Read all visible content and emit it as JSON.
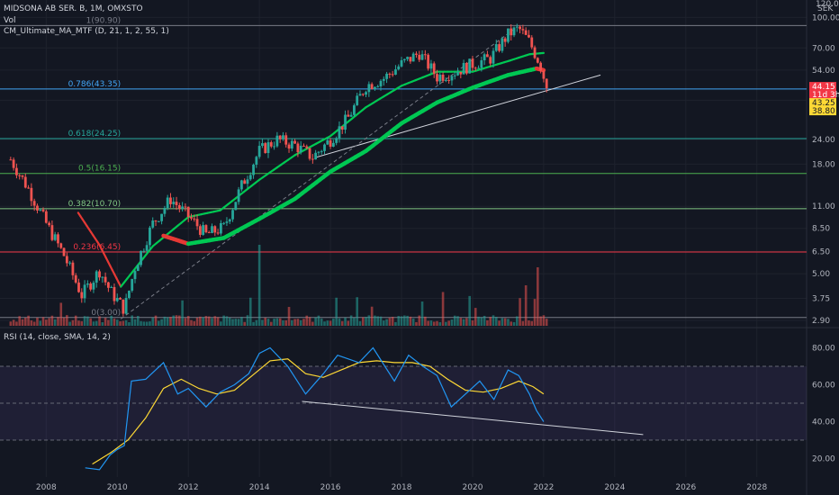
{
  "header": {
    "symbol_line": "MIDSONA AB SER. B, 1M, OMXSTO",
    "vol_label": "Vol",
    "indicator_line": "CM_Ultimate_MA_MTF (D, 21, 1, 2, 55, 1)",
    "rsi_label": "RSI (14, close, SMA, 14, 2)"
  },
  "price_axis": {
    "unit": "SEK",
    "top_value": "120.00",
    "ticks": [
      "100.00",
      "70.00",
      "54.00",
      "38.00",
      "24.00",
      "18.00",
      "11.00",
      "8.50",
      "6.50",
      "5.00",
      "3.75",
      "2.90"
    ]
  },
  "price_tags": [
    {
      "text": "44.15",
      "bg": "#f23645",
      "fg": "#ffffff"
    },
    {
      "text": "11d 3h",
      "bg": "#f23645",
      "fg": "#ffffff"
    },
    {
      "text": "43.25",
      "bg": "#fdd835",
      "fg": "#131722"
    },
    {
      "text": "38.80",
      "bg": "#fdd835",
      "fg": "#131722"
    }
  ],
  "rsi_axis": {
    "ticks": [
      "80.00",
      "60.00",
      "40.00",
      "20.00"
    ]
  },
  "time_axis": {
    "ticks": [
      "2008",
      "2010",
      "2012",
      "2014",
      "2016",
      "2018",
      "2020",
      "2022",
      "2024",
      "2026",
      "2028"
    ]
  },
  "fib_levels": [
    {
      "label": "1(90.90)",
      "color": "#787b86"
    },
    {
      "label": "0.786(43.35)",
      "color": "#42a5f5"
    },
    {
      "label": "0.618(24.25)",
      "color": "#26a69a"
    },
    {
      "label": "0.5(16.15)",
      "color": "#4caf50"
    },
    {
      "label": "0.382(10.70)",
      "color": "#81c784"
    },
    {
      "label": "0.236(6.45)",
      "color": "#f23645"
    },
    {
      "label": "0(3.00)",
      "color": "#787b86"
    }
  ],
  "colors": {
    "background": "#131722",
    "bull": "#26a69a",
    "bear": "#ef5350",
    "ma_green": "#00c853",
    "ma_red": "#e53935",
    "rsi_line": "#2196f3",
    "rsi_sma": "#fdd835",
    "rsi_band": "#7e57c2"
  },
  "chart_data": [
    {
      "type": "candlestick",
      "title": "MIDSONA AB SER. B, 1M, OMXSTO",
      "scale": "log",
      "ylim": [
        2.9,
        120
      ],
      "x_range": [
        2006.7,
        2029.4
      ],
      "anchors": [
        [
          2007.0,
          19.0
        ],
        [
          2007.5,
          13.5
        ],
        [
          2008.0,
          9.0
        ],
        [
          2008.5,
          6.2
        ],
        [
          2009.0,
          3.9
        ],
        [
          2009.5,
          5.2
        ],
        [
          2009.8,
          4.1
        ],
        [
          2010.2,
          3.3
        ],
        [
          2010.5,
          5.4
        ],
        [
          2011.0,
          9.0
        ],
        [
          2011.5,
          12.0
        ],
        [
          2012.0,
          9.8
        ],
        [
          2012.5,
          7.9
        ],
        [
          2013.0,
          8.6
        ],
        [
          2013.5,
          14.0
        ],
        [
          2014.0,
          21.0
        ],
        [
          2014.5,
          24.0
        ],
        [
          2015.0,
          22.5
        ],
        [
          2015.5,
          19.5
        ],
        [
          2016.0,
          24.0
        ],
        [
          2016.5,
          31.0
        ],
        [
          2017.0,
          45.0
        ],
        [
          2017.5,
          49.0
        ],
        [
          2018.0,
          58.0
        ],
        [
          2018.5,
          66.0
        ],
        [
          2019.0,
          50.0
        ],
        [
          2019.5,
          53.0
        ],
        [
          2020.0,
          58.0
        ],
        [
          2020.5,
          62.0
        ],
        [
          2021.0,
          82.0
        ],
        [
          2021.3,
          88.0
        ],
        [
          2021.6,
          75.0
        ],
        [
          2021.9,
          58.0
        ],
        [
          2022.1,
          43.25
        ]
      ],
      "ma_anchors": [
        [
          2008.9,
          10.2
        ],
        [
          2009.5,
          7.0
        ],
        [
          2010.1,
          4.3
        ],
        [
          2011.0,
          6.9
        ],
        [
          2012.0,
          9.7
        ],
        [
          2012.9,
          10.5
        ],
        [
          2014.0,
          15.0
        ],
        [
          2015.0,
          20.0
        ],
        [
          2016.0,
          25.0
        ],
        [
          2017.0,
          35.0
        ],
        [
          2018.0,
          45.0
        ],
        [
          2019.0,
          53.0
        ],
        [
          2020.0,
          53.0
        ],
        [
          2021.0,
          60.0
        ],
        [
          2021.6,
          65.0
        ],
        [
          2022.0,
          66.0
        ]
      ],
      "ma_slow_anchors": [
        [
          2011.3,
          7.8
        ],
        [
          2012.0,
          7.1
        ],
        [
          2013.0,
          7.6
        ],
        [
          2014.0,
          9.5
        ],
        [
          2015.0,
          12.0
        ],
        [
          2016.0,
          16.5
        ],
        [
          2017.0,
          21.0
        ],
        [
          2018.0,
          29.0
        ],
        [
          2019.0,
          37.0
        ],
        [
          2020.0,
          44.0
        ],
        [
          2021.0,
          51.0
        ],
        [
          2021.8,
          55.0
        ],
        [
          2022.0,
          54.0
        ]
      ],
      "trendlines": [
        {
          "x": [
            2015.6,
            2023.6
          ],
          "y": [
            19.5,
            51.0
          ],
          "color": "#d1d4dc",
          "style": "solid"
        },
        {
          "x": [
            2010.1,
            2021.2
          ],
          "y": [
            2.95,
            88.0
          ],
          "color": "#787b86",
          "style": "dashed"
        }
      ],
      "last_price": 44.15
    },
    {
      "type": "line",
      "title": "RSI (14, close, SMA, 14, 2)",
      "ylim": [
        10,
        90
      ],
      "band": [
        30,
        70
      ],
      "midline": 50,
      "rsi": [
        [
          2009.1,
          15
        ],
        [
          2009.5,
          14
        ],
        [
          2009.8,
          22
        ],
        [
          2010.0,
          25
        ],
        [
          2010.2,
          27
        ],
        [
          2010.4,
          62
        ],
        [
          2010.8,
          63
        ],
        [
          2011.3,
          72
        ],
        [
          2011.7,
          55
        ],
        [
          2012.0,
          58
        ],
        [
          2012.5,
          48
        ],
        [
          2012.9,
          56
        ],
        [
          2013.3,
          60
        ],
        [
          2013.7,
          66
        ],
        [
          2014.0,
          77
        ],
        [
          2014.3,
          80
        ],
        [
          2014.8,
          70
        ],
        [
          2015.3,
          55
        ],
        [
          2015.8,
          66
        ],
        [
          2016.2,
          76
        ],
        [
          2016.8,
          72
        ],
        [
          2017.2,
          80
        ],
        [
          2017.8,
          62
        ],
        [
          2018.2,
          76
        ],
        [
          2018.6,
          70
        ],
        [
          2019.0,
          65
        ],
        [
          2019.4,
          48
        ],
        [
          2019.8,
          55
        ],
        [
          2020.2,
          62
        ],
        [
          2020.6,
          52
        ],
        [
          2021.0,
          68
        ],
        [
          2021.3,
          65
        ],
        [
          2021.6,
          55
        ],
        [
          2021.8,
          46
        ],
        [
          2022.0,
          40
        ]
      ],
      "rsi_sma": [
        [
          2009.3,
          17
        ],
        [
          2009.8,
          23
        ],
        [
          2010.3,
          30
        ],
        [
          2010.8,
          42
        ],
        [
          2011.3,
          58
        ],
        [
          2011.8,
          63
        ],
        [
          2012.3,
          58
        ],
        [
          2012.8,
          55
        ],
        [
          2013.3,
          57
        ],
        [
          2013.8,
          65
        ],
        [
          2014.3,
          73
        ],
        [
          2014.8,
          74
        ],
        [
          2015.3,
          66
        ],
        [
          2015.8,
          64
        ],
        [
          2016.3,
          68
        ],
        [
          2016.8,
          72
        ],
        [
          2017.3,
          73
        ],
        [
          2017.8,
          72
        ],
        [
          2018.3,
          72
        ],
        [
          2018.8,
          70
        ],
        [
          2019.3,
          63
        ],
        [
          2019.8,
          57
        ],
        [
          2020.3,
          56
        ],
        [
          2020.8,
          58
        ],
        [
          2021.3,
          62
        ],
        [
          2021.7,
          59
        ],
        [
          2022.0,
          55
        ]
      ],
      "trendline": {
        "x": [
          2015.2,
          2024.8
        ],
        "y": [
          51.0,
          33.0
        ]
      }
    }
  ]
}
